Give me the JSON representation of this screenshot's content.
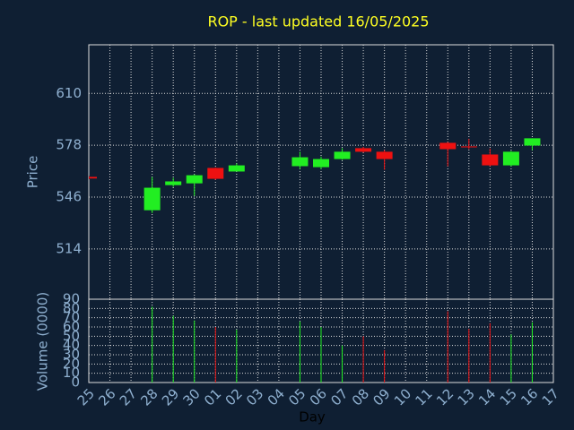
{
  "chart_data": {
    "type": "candlestick",
    "title": "ROP - last updated 16/05/2025",
    "ylabel": "Price",
    "y2label": "Volume (0000)",
    "xlabel": "Day",
    "categories": [
      "25",
      "26",
      "27",
      "28",
      "29",
      "30",
      "01",
      "02",
      "03",
      "04",
      "05",
      "06",
      "07",
      "08",
      "09",
      "10",
      "11",
      "12",
      "13",
      "14",
      "15",
      "16",
      "17"
    ],
    "open": [
      558.5,
      null,
      null,
      537.9,
      553.4,
      554.5,
      564.0,
      561.8,
      null,
      null,
      565.1,
      564.5,
      569.5,
      576.2,
      574.0,
      null,
      null,
      579.5,
      577.3,
      572.3,
      565.6,
      577.8,
      null
    ],
    "high": [
      559.0,
      null,
      null,
      558.4,
      557.9,
      560.0,
      564.3,
      566.8,
      null,
      null,
      574.0,
      571.0,
      576.2,
      577.0,
      575.0,
      null,
      null,
      580.0,
      582.0,
      576.0,
      574.5,
      582.3,
      null
    ],
    "low": [
      557.0,
      null,
      null,
      536.2,
      552.3,
      546.8,
      556.7,
      561.8,
      null,
      null,
      563.4,
      563.4,
      569.0,
      573.5,
      562.9,
      null,
      null,
      565.0,
      575.6,
      565.0,
      565.0,
      575.0,
      null
    ],
    "close": [
      557.5,
      null,
      null,
      551.8,
      555.7,
      559.5,
      557.3,
      565.6,
      null,
      null,
      570.6,
      569.5,
      574.0,
      574.0,
      569.5,
      null,
      null,
      575.6,
      576.7,
      565.6,
      574.0,
      582.3,
      null
    ],
    "volume": [
      null,
      null,
      null,
      82,
      72,
      67,
      60,
      57,
      null,
      null,
      66,
      60,
      40,
      50,
      35,
      null,
      null,
      77,
      58,
      64,
      52,
      65,
      null
    ],
    "up_color": "#22ee22",
    "down_color": "#ee1111",
    "ylim": [
      483,
      640
    ],
    "yticks": [
      514,
      546,
      578,
      610
    ],
    "y2lim": [
      0,
      90
    ],
    "y2ticks": [
      0,
      10,
      20,
      30,
      40,
      50,
      60,
      70,
      80,
      90
    ],
    "grid": true
  }
}
